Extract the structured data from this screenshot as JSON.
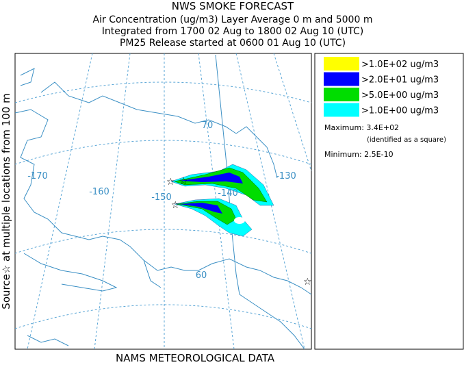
{
  "header": {
    "title": "NWS SMOKE FORECAST",
    "lines": [
      "Air Concentration (ug/m3) Layer Average    0 m and  5000 m",
      "Integrated from 1700 02 Aug to 1800 02 Aug 10 (UTC)",
      "PM25 Release started at 0600 01 Aug 10 (UTC)"
    ]
  },
  "side_label": "Source☆ at multiple locations  from   100 m",
  "footer": "NAMS METEOROLOGICAL DATA",
  "map": {
    "longitude_labels": [
      "-170",
      "-160",
      "-150",
      "-140",
      "-130"
    ],
    "latitude_labels": [
      "70",
      "60"
    ]
  },
  "legend": {
    "entries": [
      {
        "label": ">1.0E+02 ug/m3",
        "color": "#ffff00"
      },
      {
        "label": ">2.0E+01 ug/m3",
        "color": "#0000ff"
      },
      {
        "label": ">5.0E+00 ug/m3",
        "color": "#00dd00"
      },
      {
        "label": ">1.0E+00 ug/m3",
        "color": "#00ffff"
      }
    ],
    "maximum": "Maximum: 3.4E+02",
    "maximum_note": "(identified as a square)",
    "minimum": "Minimum: 2.5E-10"
  }
}
